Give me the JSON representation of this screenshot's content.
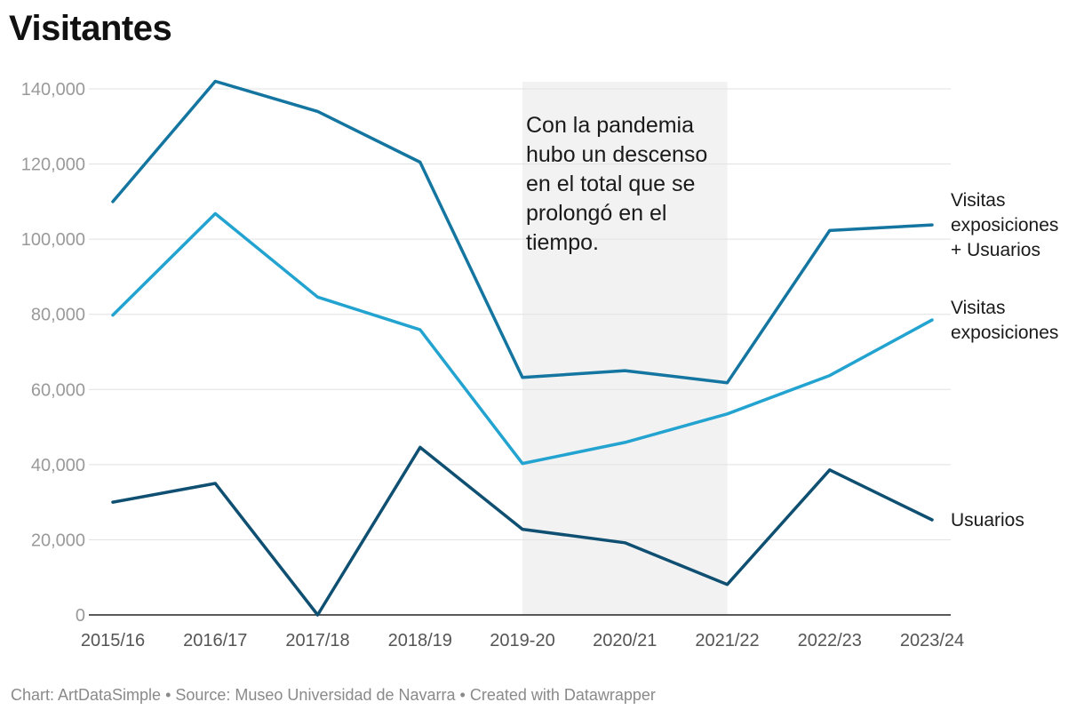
{
  "title": "Visitantes",
  "footer": "Chart: ArtDataSimple • Source: Museo Universidad de Navarra • Created with Datawrapper",
  "chart_data": {
    "type": "line",
    "title": "Visitantes",
    "xlabel": "",
    "ylabel": "",
    "categories": [
      "2015/16",
      "2016/17",
      "2017/18",
      "2018/19",
      "2019-20",
      "2020/21",
      "2021/22",
      "2022/23",
      "2023/24"
    ],
    "ylim": [
      0,
      140000
    ],
    "yticks": [
      0,
      20000,
      40000,
      60000,
      80000,
      100000,
      120000,
      140000
    ],
    "ytick_labels": [
      "0",
      "20,000",
      "40,000",
      "60,000",
      "80,000",
      "100,000",
      "120,000",
      "140,000"
    ],
    "grid": true,
    "series": [
      {
        "name": "Visitas exposiciones + Usuarios",
        "label_lines": [
          "Visitas",
          "exposiciones",
          "+ Usuarios"
        ],
        "color": "#1476a0",
        "values": [
          110000,
          142000,
          134000,
          120500,
          63200,
          65000,
          61800,
          102300,
          103800
        ]
      },
      {
        "name": "Visitas exposiciones",
        "label_lines": [
          "Visitas",
          "exposiciones"
        ],
        "color": "#23a3d0",
        "values": [
          79800,
          106800,
          84600,
          75900,
          40300,
          45900,
          53500,
          63700,
          78500
        ]
      },
      {
        "name": "Usuarios",
        "label_lines": [
          "Usuarios"
        ],
        "color": "#0e4f72",
        "values": [
          30000,
          35000,
          0,
          44600,
          22800,
          19200,
          8100,
          38600,
          25300
        ]
      }
    ],
    "highlight_range": {
      "from": "2019-20",
      "to": "2021/22",
      "color": "#f2f2f2"
    },
    "annotation": {
      "lines": [
        "Con la pandemia",
        "hubo un descenso",
        "en el total que se",
        "prolongó en el",
        "tiempo."
      ]
    }
  }
}
